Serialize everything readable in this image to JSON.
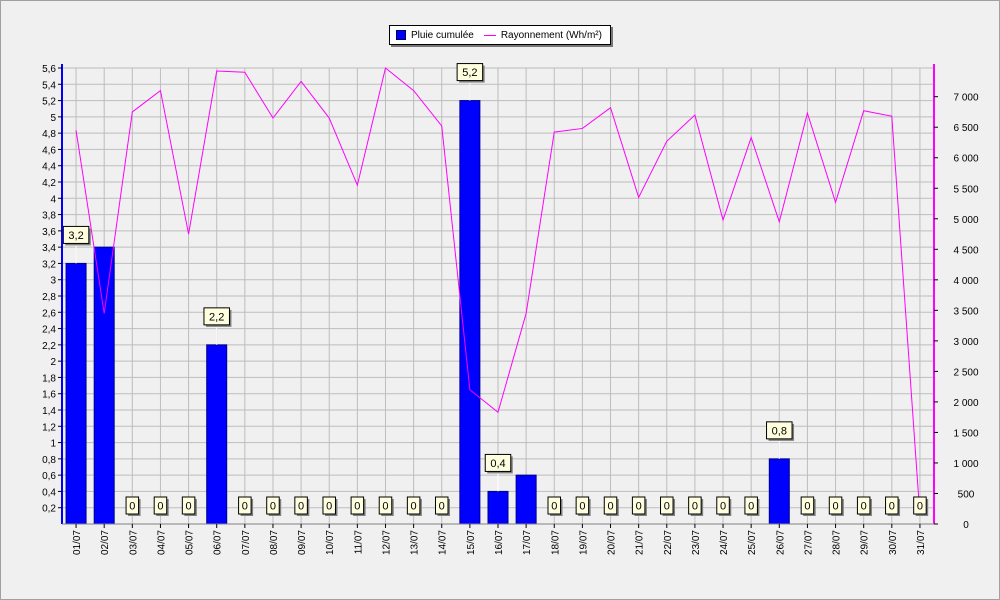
{
  "legend": {
    "bar_label": "Pluie cumulée",
    "line_label": "Rayonnement (Wh/m²)"
  },
  "colors": {
    "bar": "#0000ff",
    "line": "#ff00ff",
    "left_axis": "#0000ff",
    "right_axis": "#ff00ff",
    "label_bg": "#ffffe0"
  },
  "chart_data": {
    "type": "bar",
    "title": "",
    "xlabel": "",
    "ylabel": "",
    "categories": [
      "01/07",
      "02/07",
      "03/07",
      "04/07",
      "05/07",
      "06/07",
      "07/07",
      "08/07",
      "09/07",
      "10/07",
      "11/07",
      "12/07",
      "13/07",
      "14/07",
      "15/07",
      "16/07",
      "17/07",
      "18/07",
      "19/07",
      "20/07",
      "21/07",
      "22/07",
      "23/07",
      "24/07",
      "25/07",
      "26/07",
      "27/07",
      "28/07",
      "29/07",
      "30/07",
      "31/07"
    ],
    "series": [
      {
        "name": "Pluie cumulée",
        "type": "bar",
        "axis": "left",
        "values": [
          3.2,
          3.4,
          0,
          0,
          0,
          2.2,
          0,
          0,
          0,
          0,
          0,
          0,
          0,
          0,
          5.2,
          0.4,
          0.6,
          0,
          0,
          0,
          0,
          0,
          0,
          0,
          0,
          0.8,
          0,
          0,
          0,
          0,
          0
        ],
        "labels": [
          "3,2",
          "",
          "0",
          "0",
          "0",
          "2,2",
          "0",
          "0",
          "0",
          "0",
          "0",
          "0",
          "0",
          "0",
          "5,2",
          "0,4",
          "",
          "0",
          "0",
          "0",
          "0",
          "0",
          "0",
          "0",
          "0",
          "0,8",
          "0",
          "0",
          "0",
          "0",
          "0"
        ]
      },
      {
        "name": "Rayonnement (Wh/m²)",
        "type": "line",
        "axis": "right",
        "values": [
          6450,
          3450,
          6750,
          7100,
          4750,
          7420,
          7400,
          6650,
          7250,
          6650,
          5550,
          7470,
          7100,
          6520,
          2200,
          1830,
          3450,
          6420,
          6480,
          6820,
          5350,
          6270,
          6700,
          4980,
          6330,
          4950,
          6730,
          5270,
          6770,
          6680,
          140
        ]
      }
    ],
    "y_left": {
      "range": [
        0,
        5.6
      ],
      "ticks": [
        "0,2",
        "0,4",
        "0,6",
        "0,8",
        "1",
        "1,2",
        "1,4",
        "1,6",
        "1,8",
        "2",
        "2,2",
        "2,4",
        "2,6",
        "2,8",
        "3",
        "3,2",
        "3,4",
        "3,6",
        "3,8",
        "4",
        "4,2",
        "4,4",
        "4,6",
        "4,8",
        "5",
        "5,2",
        "5,4",
        "5,6"
      ]
    },
    "y_right": {
      "range": [
        0,
        7470
      ],
      "ticks": [
        "0",
        "500",
        "1 000",
        "1 500",
        "2 000",
        "2 500",
        "3 000",
        "3 500",
        "4 000",
        "4 500",
        "5 000",
        "5 500",
        "6 000",
        "6 500",
        "7 000"
      ]
    },
    "grid": true,
    "legend_position": "top-center"
  }
}
